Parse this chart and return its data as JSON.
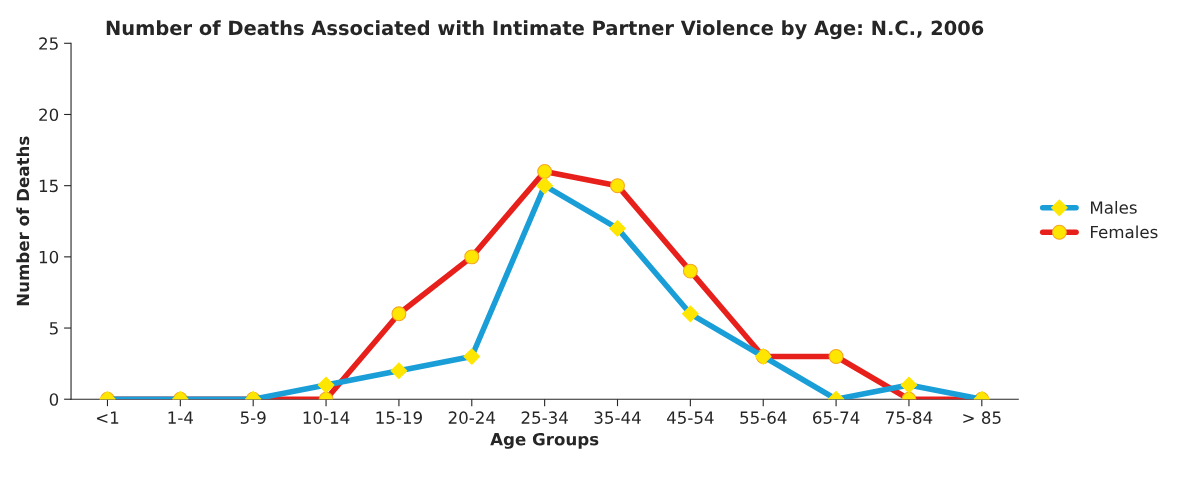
{
  "chart_data": {
    "type": "line",
    "title": "Number of Deaths Associated with Intimate Partner Violence by Age: N.C., 2006",
    "xlabel": "Age Groups",
    "ylabel": "Number of Deaths",
    "categories": [
      "<1",
      "1-4",
      "5-9",
      "10-14",
      "15-19",
      "20-24",
      "25-34",
      "35-44",
      "45-54",
      "55-64",
      "65-74",
      "75-84",
      "> 85"
    ],
    "series": [
      {
        "name": "Males",
        "color": "#1a9ed8",
        "marker": "diamond",
        "values": [
          0,
          0,
          0,
          1,
          2,
          3,
          15,
          12,
          6,
          3,
          0,
          1,
          0
        ]
      },
      {
        "name": "Females",
        "color": "#e8201c",
        "marker": "circle",
        "values": [
          0,
          0,
          0,
          0,
          6,
          10,
          16,
          15,
          9,
          3,
          3,
          0,
          0
        ]
      }
    ],
    "ylim": [
      0,
      25
    ],
    "yticks": [
      0,
      5,
      10,
      15,
      20,
      25
    ],
    "grid": false,
    "legend": "right"
  }
}
